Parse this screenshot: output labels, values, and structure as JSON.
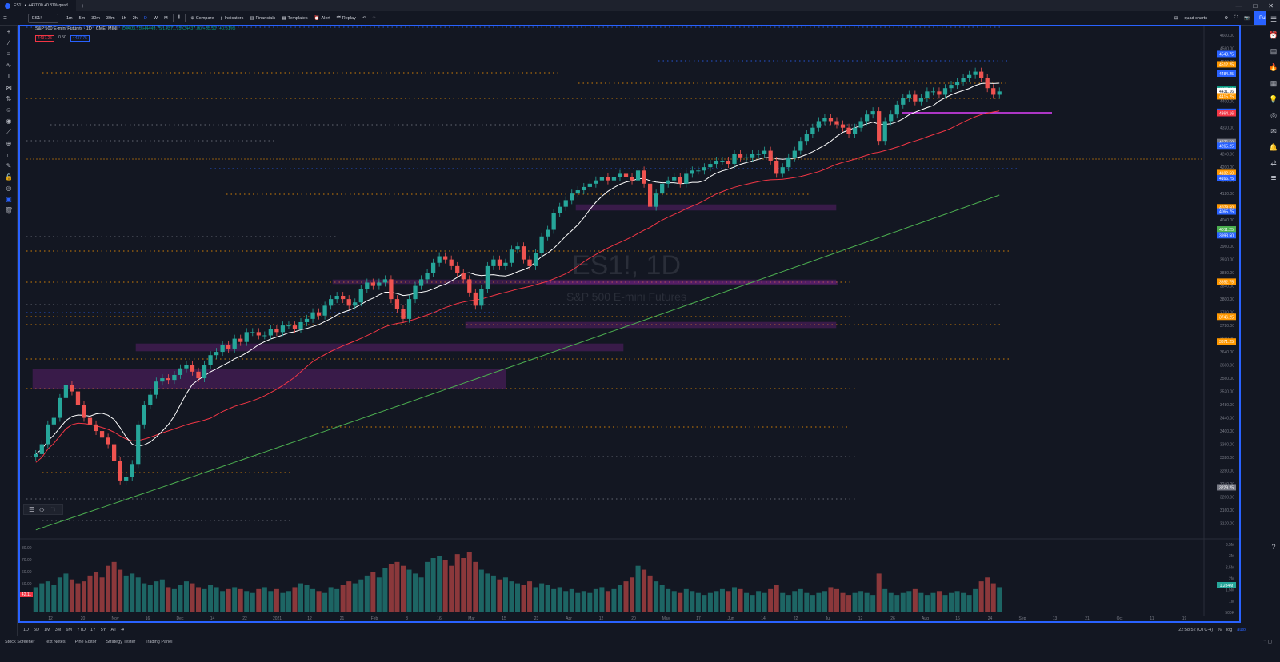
{
  "browser": {
    "tab_title": "ES1! ▲ 4437.00 +0.81% quad",
    "buttons": [
      "—",
      "□",
      "✕"
    ]
  },
  "toolbar": {
    "symbol": "ES1!",
    "timeframes": [
      "1m",
      "5m",
      "30m",
      "30m",
      "1h",
      "2h",
      "D",
      "W",
      "M"
    ],
    "compare": "Compare",
    "indicators": "Indicators",
    "financials": "Financials",
    "templates": "Templates",
    "alert": "Alert",
    "replay": "Replay",
    "layout": "quad charts",
    "publish": "Publish"
  },
  "legend": {
    "title": "S&P 500 E-mini Futures · 1D · CME_MINI",
    "ohlc": "O4403.75 H4449.75 L4371.75 C4437.00 +35.50 (+0.81%)",
    "sell": "4437.25",
    "qty": "0.50",
    "buy": "4437.75"
  },
  "watermark": {
    "symbol": "ES1!, 1D",
    "name": "S&P 500 E-mini Futures"
  },
  "price_axis": {
    "ticks": [
      "4600.00",
      "4560.00",
      "4520.00",
      "4480.00",
      "4440.00",
      "4400.00",
      "4360.00",
      "4320.00",
      "4280.00",
      "4240.00",
      "4200.00",
      "4160.00",
      "4120.00",
      "4080.00",
      "4040.00",
      "4000.00",
      "3960.00",
      "3920.00",
      "3880.00",
      "3840.00",
      "3800.00",
      "3760.00",
      "3720.00",
      "3680.00",
      "3640.00",
      "3600.00",
      "3560.00",
      "3520.00",
      "3480.00",
      "3440.00",
      "3400.00",
      "3360.00",
      "3320.00",
      "3280.00",
      "3240.00",
      "3200.00",
      "3160.00",
      "3120.00"
    ],
    "tags": [
      {
        "v": "4543.75",
        "c": "#2962ff"
      },
      {
        "v": "4512.25",
        "c": "#ff9800"
      },
      {
        "v": "4484.25",
        "c": "#2962ff"
      },
      {
        "v": "4437.00",
        "c": "#089981"
      },
      {
        "v": "4431.16",
        "c": "#ffffff"
      },
      {
        "v": "4415.25",
        "c": "#ff9800"
      },
      {
        "v": "4368.25",
        "c": "#2962ff"
      },
      {
        "v": "4364.16",
        "c": "#f23645"
      },
      {
        "v": "4276.50",
        "c": "#787b86"
      },
      {
        "v": "4265.25",
        "c": "#2962ff"
      },
      {
        "v": "4182.50",
        "c": "#ff9800"
      },
      {
        "v": "4166.75",
        "c": "#2962ff"
      },
      {
        "v": "4078.50",
        "c": "#ff9800"
      },
      {
        "v": "4065.75",
        "c": "#2962ff"
      },
      {
        "v": "4011.25",
        "c": "#4caf50"
      },
      {
        "v": "3993.50",
        "c": "#2962ff"
      },
      {
        "v": "3852.75",
        "c": "#ff9800"
      },
      {
        "v": "3746.25",
        "c": "#ff9800"
      },
      {
        "v": "3671.25",
        "c": "#ff9800"
      },
      {
        "v": "3229.25",
        "c": "#787b86"
      }
    ]
  },
  "vol_axis": {
    "ticks": [
      "3.5M",
      "3M",
      "2.5M",
      "2M",
      "1.5M",
      "1M",
      "500K"
    ],
    "tag": "1.284M",
    "left_ticks": [
      "80.00",
      "70.00",
      "60.00",
      "50.00",
      "40.00"
    ],
    "left_tag": "42.11"
  },
  "time_axis": [
    "12",
    "20",
    "Nov",
    "16",
    "Dec",
    "14",
    "22",
    "2021",
    "12",
    "21",
    "Feb",
    "8",
    "16",
    "Mar",
    "15",
    "23",
    "Apr",
    "12",
    "20",
    "May",
    "17",
    "Jun",
    "14",
    "22",
    "Jul",
    "12",
    "26",
    "Aug",
    "16",
    "24",
    "Sep",
    "13",
    "21",
    "Oct",
    "11",
    "19"
  ],
  "status": {
    "ranges": [
      "1D",
      "5D",
      "1M",
      "3M",
      "6M",
      "YTD",
      "1Y",
      "5Y",
      "All"
    ],
    "clock": "22:58:52 (UTC-4)",
    "pct": "%",
    "log": "log",
    "auto": "auto"
  },
  "bottom": [
    "Stock Screener",
    "Text Notes",
    "Pine Editor",
    "Strategy Tester",
    "Trading Panel"
  ],
  "chart_data": {
    "type": "candlestick",
    "title": "S&P 500 E-mini Futures · 1D · CME_MINI",
    "ylim": [
      3080,
      4620
    ],
    "series_ma": [
      {
        "name": "MA fast",
        "color": "#ffffff"
      },
      {
        "name": "MA mid",
        "color": "#f23645"
      },
      {
        "name": "MA slow",
        "color": "#4caf50"
      }
    ],
    "closes": [
      3330,
      3360,
      3420,
      3440,
      3500,
      3540,
      3520,
      3480,
      3440,
      3420,
      3400,
      3380,
      3360,
      3310,
      3250,
      3260,
      3300,
      3420,
      3480,
      3510,
      3550,
      3560,
      3555,
      3570,
      3590,
      3600,
      3580,
      3560,
      3600,
      3630,
      3640,
      3660,
      3650,
      3680,
      3670,
      3700,
      3700,
      3690,
      3690,
      3710,
      3700,
      3720,
      3720,
      3710,
      3730,
      3740,
      3760,
      3750,
      3780,
      3800,
      3810,
      3800,
      3780,
      3790,
      3830,
      3850,
      3840,
      3850,
      3860,
      3800,
      3770,
      3740,
      3800,
      3840,
      3860,
      3880,
      3910,
      3930,
      3920,
      3900,
      3880,
      3860,
      3820,
      3780,
      3830,
      3900,
      3920,
      3900,
      3910,
      3950,
      3960,
      3920,
      3900,
      3940,
      3990,
      4010,
      4060,
      4080,
      4100,
      4120,
      4130,
      4140,
      4150,
      4160,
      4170,
      4160,
      4170,
      4180,
      4170,
      4160,
      4190,
      4150,
      4080,
      4120,
      4150,
      4160,
      4170,
      4150,
      4180,
      4190,
      4190,
      4200,
      4210,
      4220,
      4220,
      4210,
      4240,
      4230,
      4230,
      4240,
      4240,
      4250,
      4220,
      4180,
      4200,
      4230,
      4250,
      4280,
      4300,
      4320,
      4340,
      4350,
      4340,
      4330,
      4320,
      4300,
      4320,
      4340,
      4360,
      4370,
      4280,
      4340,
      4360,
      4390,
      4410,
      4420,
      4400,
      4410,
      4430,
      4430,
      4420,
      4440,
      4450,
      4460,
      4470,
      4480,
      4490,
      4470,
      4440,
      4420,
      4430
    ],
    "volumes": [
      1.3,
      1.5,
      1.6,
      1.4,
      1.8,
      2.0,
      1.7,
      1.5,
      1.6,
      1.9,
      2.1,
      1.8,
      2.4,
      2.6,
      2.2,
      1.9,
      2.0,
      1.8,
      1.5,
      1.4,
      1.6,
      1.7,
      1.3,
      1.2,
      1.4,
      1.6,
      1.5,
      1.3,
      1.2,
      1.4,
      1.3,
      1.1,
      1.2,
      1.3,
      1.2,
      1.1,
      1.0,
      1.2,
      1.3,
      1.1,
      1.2,
      1.0,
      1.1,
      1.3,
      1.5,
      1.4,
      1.2,
      1.1,
      1.0,
      1.3,
      1.2,
      1.4,
      1.6,
      1.5,
      1.7,
      1.9,
      2.1,
      1.8,
      2.3,
      2.5,
      2.6,
      2.4,
      2.2,
      2.0,
      1.8,
      2.6,
      2.8,
      2.9,
      2.7,
      2.4,
      3.0,
      2.8,
      3.1,
      2.6,
      2.2,
      2.0,
      1.9,
      1.7,
      1.8,
      1.6,
      1.5,
      1.4,
      1.6,
      1.3,
      1.5,
      1.4,
      1.2,
      1.3,
      1.1,
      1.2,
      1.0,
      1.1,
      1.0,
      1.2,
      1.3,
      1.1,
      1.2,
      1.4,
      1.6,
      1.8,
      2.4,
      2.2,
      1.9,
      1.6,
      1.4,
      1.2,
      1.1,
      1.0,
      1.2,
      1.1,
      1.0,
      0.9,
      1.0,
      1.1,
      1.2,
      1.1,
      1.3,
      1.2,
      1.0,
      0.9,
      1.1,
      1.0,
      1.2,
      1.4,
      1.0,
      0.9,
      1.1,
      1.2,
      1.0,
      0.9,
      1.0,
      1.1,
      1.3,
      1.2,
      1.0,
      0.9,
      1.0,
      1.1,
      1.0,
      0.9,
      2.0,
      1.2,
      1.0,
      0.9,
      1.0,
      1.1,
      1.2,
      1.0,
      0.9,
      1.0,
      1.1,
      0.9,
      1.0,
      1.1,
      1.0,
      0.9,
      1.2,
      1.6,
      1.8,
      1.5,
      1.3
    ]
  }
}
